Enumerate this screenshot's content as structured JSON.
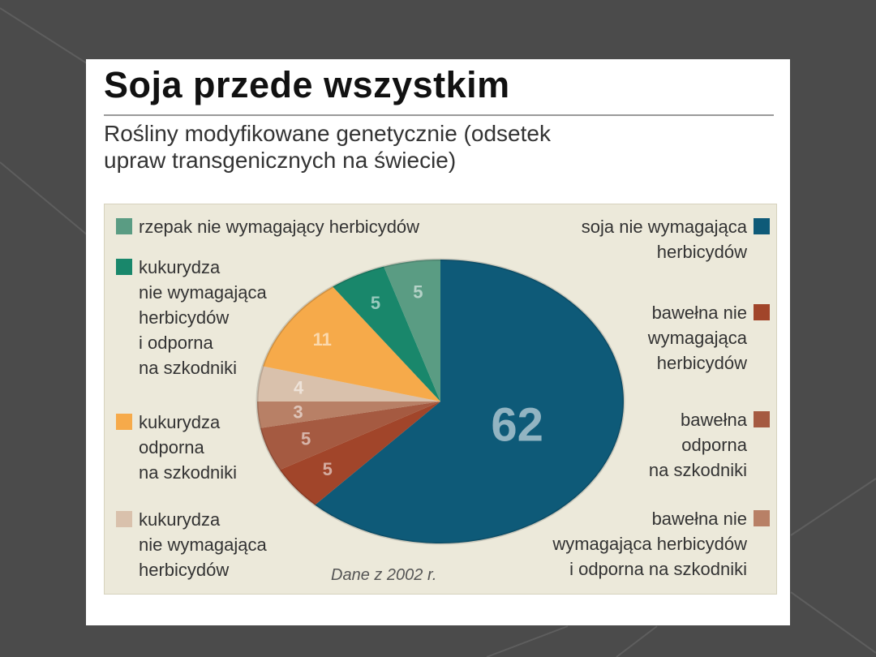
{
  "title": "Soja przede wszystkim",
  "subtitle_lines": [
    "Rośliny modyfikowane genetycznie (odsetek",
    "upraw transgenicznych na świecie)"
  ],
  "note": "Dane z 2002 r.",
  "chart_data": {
    "type": "pie",
    "title": "Soja przede wszystkim",
    "subtitle": "Rośliny modyfikowane genetycznie (odsetek upraw transgenicznych na świecie)",
    "units": "%",
    "slices": [
      {
        "label": "soja nie wymagająca herbicydów",
        "value": 62,
        "color": "#0e5a78"
      },
      {
        "label": "bawełna nie wymagająca herbicydów",
        "value": 5,
        "color": "#a1452a"
      },
      {
        "label": "bawełna odporna na szkodniki",
        "value": 5,
        "color": "#a55a41"
      },
      {
        "label": "bawełna nie wymagająca herbicydów i odporna na szkodniki",
        "value": 3,
        "color": "#b88066"
      },
      {
        "label": "kukurydza nie wymagająca herbicydów",
        "value": 4,
        "color": "#d9c1ac"
      },
      {
        "label": "kukurydza odporna na szkodniki",
        "value": 11,
        "color": "#f6aa4a"
      },
      {
        "label": "kukurydza nie wymagająca herbicydów i odporna na szkodniki",
        "value": 5,
        "color": "#19876b"
      },
      {
        "label": "rzepak nie wymagający herbicydów",
        "value": 5,
        "color": "#5a9c83"
      }
    ]
  },
  "legend_left": [
    {
      "color": "#5a9c83",
      "lines": [
        "rzepak nie wymagający herbicydów"
      ]
    },
    {
      "color": "#19876b",
      "lines": [
        "kukurydza",
        "nie wymagająca",
        "herbicydów",
        "i odporna",
        "na szkodniki"
      ]
    },
    {
      "color": "#f6aa4a",
      "lines": [
        "kukurydza",
        "odporna",
        "na szkodniki"
      ]
    },
    {
      "color": "#d9c1ac",
      "lines": [
        "kukurydza",
        "nie wymagająca",
        "herbicydów"
      ]
    }
  ],
  "legend_right": [
    {
      "color": "#0e5a78",
      "lines": [
        "soja nie wymagająca",
        "herbicydów"
      ]
    },
    {
      "color": "#a1452a",
      "lines": [
        "bawełna nie",
        "wymagająca",
        "herbicydów"
      ]
    },
    {
      "color": "#a55a41",
      "lines": [
        "bawełna",
        "odporna",
        "na szkodniki"
      ]
    },
    {
      "color": "#b88066",
      "lines": [
        "bawełna nie",
        "wymagająca herbicydów",
        "i odporna na szkodniki"
      ]
    }
  ]
}
